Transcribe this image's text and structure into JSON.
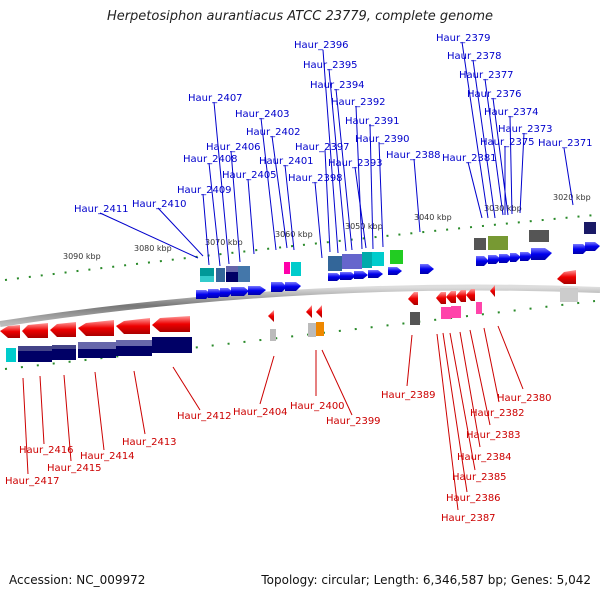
{
  "title": "Herpetosiphon aurantiacus ATCC 23779, complete genome",
  "footer": {
    "accession": "Accession: NC_009972",
    "topology": "Topology: circular; Length: 6,346,587 bp; Genes: 5,042"
  },
  "kbp_labels": [
    "3090 kbp",
    "3080 kbp",
    "3070 kbp",
    "3060 kbp",
    "3050 kbp",
    "3040 kbp",
    "3030 kbp",
    "3020 kbp"
  ],
  "forward_genes": [
    "Haur_2396",
    "Haur_2395",
    "Haur_2394",
    "Haur_2392",
    "Haur_2391",
    "Haur_2390",
    "Haur_2397",
    "Haur_2393",
    "Haur_2388",
    "Haur_2398",
    "Haur_2407",
    "Haur_2403",
    "Haur_2402",
    "Haur_2406",
    "Haur_2401",
    "Haur_2408",
    "Haur_2405",
    "Haur_2409",
    "Haur_2410",
    "Haur_2411",
    "Haur_2379",
    "Haur_2378",
    "Haur_2377",
    "Haur_2376",
    "Haur_2374",
    "Haur_2373",
    "Haur_2375",
    "Haur_2381",
    "Haur_2371"
  ],
  "reverse_genes": [
    "Haur_2412",
    "Haur_2404",
    "Haur_2400",
    "Haur_2399",
    "Haur_2413",
    "Haur_2414",
    "Haur_2416",
    "Haur_2415",
    "Haur_2417",
    "Haur_2389",
    "Haur_2380",
    "Haur_2382",
    "Haur_2383",
    "Haur_2384",
    "Haur_2385",
    "Haur_2386",
    "Haur_2387"
  ],
  "colors": {
    "forward": "#0000cc",
    "reverse": "#cc0000",
    "backbone": "#888888",
    "tick": "#2a8a2a"
  }
}
